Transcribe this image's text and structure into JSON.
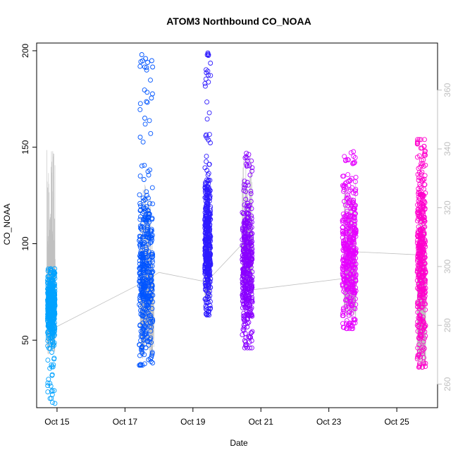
{
  "chart_data": {
    "type": "scatter",
    "title": "ATOM3 Northbound CO_NOAA",
    "xlabel": "Date",
    "ylabel": "CO_NOAA",
    "x_ticks": [
      "Oct 15",
      "Oct 17",
      "Oct 19",
      "Oct 21",
      "Oct 23",
      "Oct 25"
    ],
    "x_tick_values": [
      15,
      17,
      19,
      21,
      23,
      25
    ],
    "xlim": [
      14.4,
      26.2
    ],
    "y_ticks": [
      50,
      100,
      150,
      200
    ],
    "y_tick_labels": [
      "50",
      "100",
      "150",
      "200"
    ],
    "ylim": [
      15,
      204
    ],
    "y2_ticks": [
      260,
      280,
      300,
      320,
      340,
      360
    ],
    "y2_tick_labels": [
      "260",
      "280",
      "300",
      "320",
      "340",
      "360"
    ],
    "y2lim": [
      252,
      376
    ],
    "grid": false,
    "colors": {
      "secondary_line": "#c0c0c0",
      "right_axis": "#bfbfbf"
    },
    "clusters": [
      {
        "x_start": 14.72,
        "x_end": 14.94,
        "y_min": 17,
        "y_max": 87,
        "y_center": 68,
        "color": "#00a2ff"
      },
      {
        "x_start": 17.42,
        "x_end": 17.82,
        "y_min": 37,
        "y_max": 201,
        "y_center": 85,
        "color": "#0055ff"
      },
      {
        "x_start": 19.35,
        "x_end": 19.52,
        "y_min": 63,
        "y_max": 200,
        "y_center": 100,
        "color": "#2e1bff"
      },
      {
        "x_start": 20.45,
        "x_end": 20.75,
        "y_min": 46,
        "y_max": 147,
        "y_center": 88,
        "color": "#8a00ff"
      },
      {
        "x_start": 23.4,
        "x_end": 23.8,
        "y_min": 56,
        "y_max": 148,
        "y_center": 95,
        "color": "#e600ff"
      },
      {
        "x_start": 25.6,
        "x_end": 25.85,
        "y_min": 36,
        "y_max": 154,
        "y_center": 95,
        "color": "#ff00cc"
      }
    ],
    "secondary_series": {
      "axis": "right",
      "color": "#c0c0c0",
      "points": [
        {
          "x": 14.9,
          "y": 279
        },
        {
          "x": 17.6,
          "y": 295
        },
        {
          "x": 18.0,
          "y": 298
        },
        {
          "x": 19.3,
          "y": 295
        },
        {
          "x": 19.5,
          "y": 296
        },
        {
          "x": 20.4,
          "y": 307
        },
        {
          "x": 20.7,
          "y": 292
        },
        {
          "x": 23.5,
          "y": 296
        },
        {
          "x": 23.8,
          "y": 305
        },
        {
          "x": 25.6,
          "y": 304
        }
      ],
      "bursts": [
        {
          "x_start": 14.7,
          "x_end": 14.95,
          "y_min": 262,
          "y_max": 340
        },
        {
          "x_start": 17.45,
          "x_end": 17.85,
          "y_min": 262,
          "y_max": 328
        },
        {
          "x_start": 19.35,
          "x_end": 19.52,
          "y_min": 285,
          "y_max": 320
        },
        {
          "x_start": 20.45,
          "x_end": 20.75,
          "y_min": 285,
          "y_max": 338
        },
        {
          "x_start": 23.45,
          "x_end": 23.8,
          "y_min": 277,
          "y_max": 330
        },
        {
          "x_start": 25.6,
          "x_end": 25.85,
          "y_min": 258,
          "y_max": 325
        }
      ]
    }
  }
}
